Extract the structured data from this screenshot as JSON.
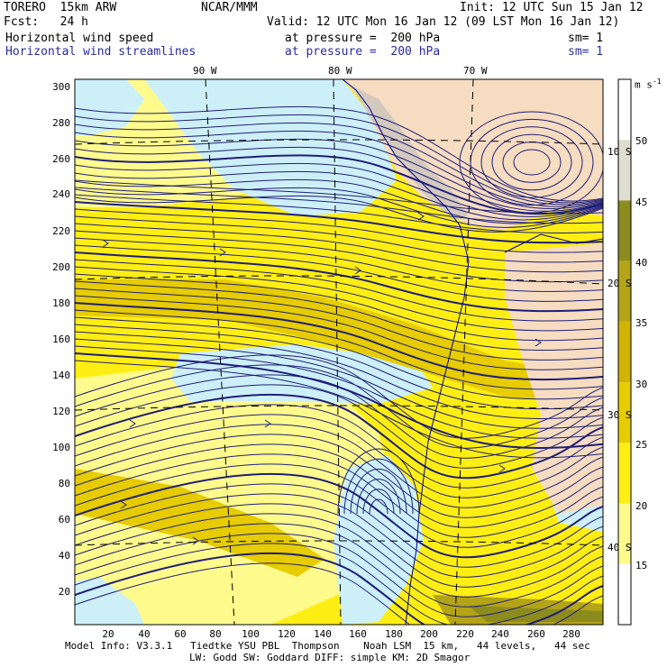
{
  "header": {
    "model": "TORERO  15km ARW",
    "center": "NCAR/MMM",
    "init": "Init: 12 UTC Sun 15 Jan 12",
    "fcst": "Fcst:   24 h",
    "valid": "Valid: 12 UTC Mon 16 Jan 12 (09 LST Mon 16 Jan 12)",
    "field1_name": "Horizontal wind speed",
    "field1_level": "at pressure =  200 hPa",
    "field1_sm": "sm= 1",
    "field2_name": "Horizontal wind streamlines",
    "field2_level": "at pressure =  200 hPa",
    "field2_sm": "sm= 1"
  },
  "map": {
    "longitude_labels": [
      "90 W",
      "80 W",
      "70 W"
    ],
    "latitude_labels": [
      "10 S",
      "20 S",
      "30 S",
      "40 S"
    ],
    "y_ticks": [
      "300",
      "280",
      "260",
      "240",
      "220",
      "200",
      "180",
      "160",
      "140",
      "120",
      "100",
      "80",
      "60",
      "40",
      "20"
    ],
    "x_ticks": [
      "20",
      "40",
      "60",
      "80",
      "100",
      "120",
      "140",
      "160",
      "180",
      "200",
      "220",
      "240",
      "260",
      "280"
    ]
  },
  "colorbar": {
    "unit": "m s",
    "unit_exp": "-1",
    "labels": [
      "50",
      "45",
      "40",
      "35",
      "30",
      "25",
      "20",
      "15"
    ],
    "colors": [
      "#ffffff",
      "#deded0",
      "#8c8c1e",
      "#b4a418",
      "#d2b400",
      "#e6cc00",
      "#ffee14",
      "#fffa8c",
      "#ffffff"
    ]
  },
  "fill_colors": {
    "light_blue": "#cdf0f8",
    "yellow_light": "#fffa8c",
    "yellow": "#ffee14",
    "yellow_dark": "#e6cc00",
    "olive": "#8c8c1e",
    "land": "#f6dcc0",
    "streamline": "#1e1e78"
  },
  "footer": {
    "line1": "Model Info: V3.3.1   Tiedtke YSU PBL  Thompson    Noah LSM  15 km,   44 levels,   44 sec",
    "line2": "LW: Godd SW: Goddard DIFF: simple KM: 2D Smagor"
  }
}
